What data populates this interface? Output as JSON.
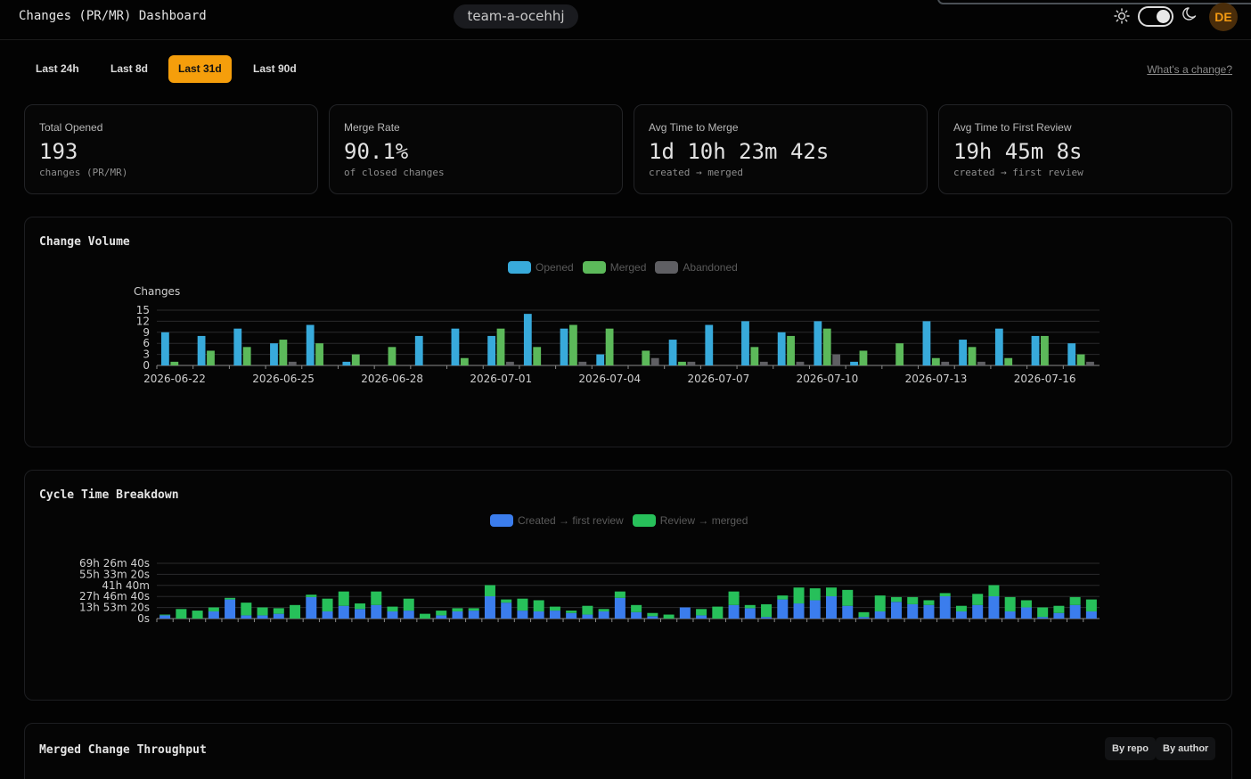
{
  "header": {
    "title": "Changes (PR/MR) Dashboard",
    "team": "team-a-ocehhj",
    "avatar_initials": "DE",
    "icons": [
      "sun-icon",
      "theme-toggle",
      "moon-icon"
    ]
  },
  "ranges": {
    "tabs": [
      {
        "label": "Last 24h",
        "active": false
      },
      {
        "label": "Last 8d",
        "active": false
      },
      {
        "label": "Last 31d",
        "active": true
      },
      {
        "label": "Last 90d",
        "active": false
      }
    ],
    "help_link": "What's a change?"
  },
  "stats": [
    {
      "label": "Total Opened",
      "value": "193",
      "sub": "changes (PR/MR)"
    },
    {
      "label": "Merge Rate",
      "value": "90.1%",
      "sub": "of closed changes"
    },
    {
      "label": "Avg Time to Merge",
      "value": "1d 10h 23m 42s",
      "sub": "created → merged"
    },
    {
      "label": "Avg Time to First Review",
      "value": "19h 45m 8s",
      "sub": "created → first review"
    }
  ],
  "volume": {
    "title": "Change Volume",
    "ylabel": "Changes",
    "legend": [
      "Opened",
      "Merged",
      "Abandoned"
    ]
  },
  "cycle": {
    "title": "Cycle Time Breakdown",
    "legend": [
      "Created → first review",
      "Review → merged"
    ]
  },
  "throughput": {
    "title": "Merged Change Throughput",
    "buttons": [
      "By repo",
      "By author"
    ]
  },
  "colors": {
    "accent": "#f59e0b",
    "opened": "#38aadb",
    "merged": "#5cb95a",
    "abandoned": "#5f5f63",
    "first_review": "#3b7ded",
    "review_merged": "#27c05a"
  },
  "chart_data": [
    {
      "type": "bar",
      "title": "Change Volume",
      "ylabel": "Changes",
      "ylim": [
        0,
        15
      ],
      "yticks": [
        0,
        3,
        6,
        9,
        12,
        15
      ],
      "xtick_labels": [
        "2026-06-22",
        "2026-06-25",
        "2026-06-28",
        "2026-07-01",
        "2026-07-04",
        "2026-07-07",
        "2026-07-10",
        "2026-07-13",
        "2026-07-16"
      ],
      "categories": [
        "2026-06-22",
        "2026-06-23",
        "2026-06-24",
        "2026-06-25",
        "2026-06-26",
        "2026-06-27",
        "2026-06-28",
        "2026-06-29",
        "2026-06-30",
        "2026-07-01",
        "2026-07-02",
        "2026-07-03",
        "2026-07-04",
        "2026-07-05",
        "2026-07-06",
        "2026-07-07",
        "2026-07-08",
        "2026-07-09",
        "2026-07-10",
        "2026-07-11",
        "2026-07-12",
        "2026-07-13",
        "2026-07-14",
        "2026-07-15",
        "2026-07-16",
        "2026-07-17"
      ],
      "series": [
        {
          "name": "Opened",
          "values": [
            9,
            8,
            10,
            6,
            11,
            1,
            0,
            8,
            10,
            8,
            14,
            10,
            3,
            0,
            7,
            11,
            12,
            9,
            12,
            1,
            0,
            12,
            7,
            10,
            8,
            6
          ]
        },
        {
          "name": "Merged",
          "values": [
            1,
            4,
            5,
            7,
            6,
            3,
            5,
            0,
            2,
            10,
            5,
            11,
            10,
            4,
            1,
            0,
            5,
            8,
            10,
            4,
            6,
            2,
            5,
            2,
            8,
            3
          ]
        },
        {
          "name": "Abandoned",
          "values": [
            0,
            0,
            0,
            1,
            0,
            0,
            0,
            0,
            0,
            1,
            0,
            1,
            0,
            2,
            1,
            0,
            1,
            1,
            3,
            0,
            0,
            1,
            1,
            0,
            0,
            1
          ]
        }
      ],
      "legend_position": "top-center",
      "grid": true
    },
    {
      "type": "bar",
      "title": "Cycle Time Breakdown",
      "stacked": true,
      "unit": "hours",
      "ylim": [
        0,
        69.44
      ],
      "ytick_labels": [
        "0s",
        "13h 53m 20s",
        "27h 46m 40s",
        "41h 40m",
        "55h 33m 20s",
        "69h 26m 40s"
      ],
      "series": [
        {
          "name": "Created → first review",
          "values": [
            4,
            0,
            0,
            9,
            24,
            4,
            4,
            6,
            0,
            27,
            9,
            16,
            12,
            17,
            9,
            10,
            0,
            4,
            9,
            10,
            28,
            20,
            10,
            9,
            10,
            7,
            5,
            9,
            26,
            8,
            3,
            0,
            14,
            4,
            0,
            17,
            13,
            2,
            24,
            19,
            23,
            28,
            16,
            2,
            9,
            21,
            18,
            17,
            28,
            9,
            17,
            28,
            9,
            14,
            2,
            7,
            17,
            9
          ]
        },
        {
          "name": "Review → merged",
          "values": [
            1,
            12,
            10,
            5,
            2,
            16,
            10,
            7,
            17,
            3,
            16,
            18,
            7,
            17,
            6,
            15,
            6,
            6,
            4,
            3,
            14,
            4,
            15,
            14,
            5,
            3,
            11,
            3,
            8,
            9,
            4,
            5,
            0,
            8,
            15,
            17,
            4,
            16,
            5,
            20,
            15,
            11,
            20,
            6,
            20,
            6,
            9,
            6,
            4,
            7,
            14,
            14,
            18,
            9,
            12,
            9,
            10,
            15
          ]
        }
      ],
      "legend_position": "top-center",
      "grid": true
    }
  ]
}
